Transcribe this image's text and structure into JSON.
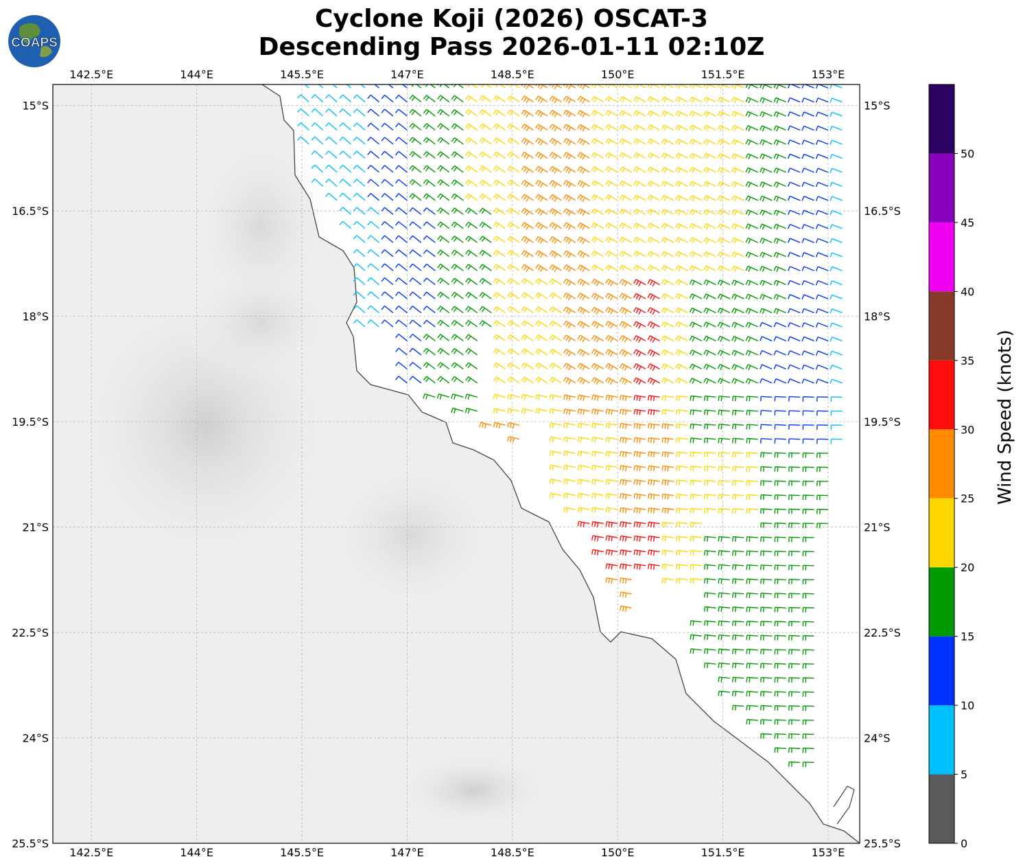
{
  "title_line1": "Cyclone Koji (2026) OSCAT-3",
  "title_line2": "Descending Pass 2026-01-11 02:10Z",
  "logo_text": "COAPS",
  "lon_ticks": [
    "142.5°E",
    "144°E",
    "145.5°E",
    "147°E",
    "148.5°E",
    "150°E",
    "151.5°E",
    "153°E"
  ],
  "lat_ticks": [
    "15°S",
    "16.5°S",
    "18°S",
    "19.5°S",
    "21°S",
    "22.5°S",
    "24°S",
    "25.5°S"
  ],
  "map_extent": {
    "lon_min": 141.95,
    "lon_max": 153.45,
    "lat_min": -25.5,
    "lat_max": -14.7
  },
  "colorbar": {
    "title": "Wind Speed (knots)",
    "tick_labels": [
      "0",
      "5",
      "10",
      "15",
      "20",
      "25",
      "30",
      "35",
      "40",
      "45",
      "50"
    ],
    "bins": [
      {
        "min": 0,
        "max": 5,
        "color": "#595959"
      },
      {
        "min": 5,
        "max": 10,
        "color": "#00bfff"
      },
      {
        "min": 10,
        "max": 15,
        "color": "#0033ff"
      },
      {
        "min": 15,
        "max": 20,
        "color": "#009900"
      },
      {
        "min": 20,
        "max": 25,
        "color": "#ffd700"
      },
      {
        "min": 25,
        "max": 30,
        "color": "#ff8c00"
      },
      {
        "min": 30,
        "max": 35,
        "color": "#ff0d0d"
      },
      {
        "min": 35,
        "max": 40,
        "color": "#843c28"
      },
      {
        "min": 40,
        "max": 45,
        "color": "#f000f0"
      },
      {
        "min": 45,
        "max": 50,
        "color": "#8800bb"
      },
      {
        "min": 50,
        "max": 55,
        "color": "#2a0060"
      }
    ]
  },
  "wind_regions": [
    {
      "lat_min": -16.4,
      "lat_max": -14.7,
      "lon_min": 145.5,
      "lon_max": 146.5,
      "speed": 7
    },
    {
      "lat_min": -16.4,
      "lat_max": -14.7,
      "lon_min": 146.5,
      "lon_max": 147.1,
      "speed": 12
    },
    {
      "lat_min": -16.4,
      "lat_max": -14.7,
      "lon_min": 147.1,
      "lon_max": 147.8,
      "speed": 17
    },
    {
      "lat_min": -17.5,
      "lat_max": -14.7,
      "lon_min": 147.8,
      "lon_max": 148.6,
      "speed": 23
    },
    {
      "lat_min": -17.5,
      "lat_max": -14.7,
      "lon_min": 148.6,
      "lon_max": 149.6,
      "speed": 27
    },
    {
      "lat_min": -17.5,
      "lat_max": -14.7,
      "lon_min": 149.6,
      "lon_max": 151.0,
      "speed": 23
    },
    {
      "lat_min": -17.5,
      "lat_max": -14.7,
      "lon_min": 151.0,
      "lon_max": 151.9,
      "speed": 22
    },
    {
      "lat_min": -18.0,
      "lat_max": -14.7,
      "lon_min": 151.9,
      "lon_max": 152.4,
      "speed": 17
    },
    {
      "lat_min": -18.0,
      "lat_max": -14.7,
      "lon_min": 152.4,
      "lon_max": 153.0,
      "speed": 12
    },
    {
      "lat_min": -18.0,
      "lat_max": -14.7,
      "lon_min": 153.0,
      "lon_max": 153.5,
      "speed": 8
    },
    {
      "lat_min": -18.3,
      "lat_max": -16.4,
      "lon_min": 146.1,
      "lon_max": 146.7,
      "speed": 8
    },
    {
      "lat_min": -18.3,
      "lat_max": -16.4,
      "lon_min": 146.7,
      "lon_max": 147.5,
      "speed": 13
    },
    {
      "lat_min": -18.3,
      "lat_max": -16.4,
      "lon_min": 147.5,
      "lon_max": 148.3,
      "speed": 18
    },
    {
      "lat_min": -19.5,
      "lat_max": -17.5,
      "lon_min": 148.3,
      "lon_max": 149.3,
      "speed": 24
    },
    {
      "lat_min": -19.5,
      "lat_max": -17.5,
      "lon_min": 149.3,
      "lon_max": 150.3,
      "speed": 27
    },
    {
      "lat_min": -19.8,
      "lat_max": -17.5,
      "lon_min": 150.3,
      "lon_max": 150.7,
      "speed": 32
    },
    {
      "lat_min": -19.8,
      "lat_max": -17.5,
      "lon_min": 150.7,
      "lon_max": 151.1,
      "speed": 23
    },
    {
      "lat_min": -19.8,
      "lat_max": -17.5,
      "lon_min": 151.1,
      "lon_max": 152.0,
      "speed": 18
    },
    {
      "lat_min": -19.8,
      "lat_max": -18.0,
      "lon_min": 152.0,
      "lon_max": 153.0,
      "speed": 12
    },
    {
      "lat_min": -19.8,
      "lat_max": -18.0,
      "lon_min": 153.0,
      "lon_max": 153.5,
      "speed": 8
    },
    {
      "lat_min": -19.4,
      "lat_max": -18.3,
      "lon_min": 146.9,
      "lon_max": 147.2,
      "speed": 12
    },
    {
      "lat_min": -19.4,
      "lat_max": -18.3,
      "lon_min": 147.2,
      "lon_max": 148.0,
      "speed": 18
    },
    {
      "lat_min": -20.1,
      "lat_max": -19.4,
      "lon_min": 148.0,
      "lon_max": 148.6,
      "speed": 27
    },
    {
      "lat_min": -20.8,
      "lat_max": -19.5,
      "lon_min": 149.0,
      "lon_max": 150.0,
      "speed": 23
    },
    {
      "lat_min": -20.8,
      "lat_max": -19.5,
      "lon_min": 150.0,
      "lon_max": 150.8,
      "speed": 29
    },
    {
      "lat_min": -20.8,
      "lat_max": -19.8,
      "lon_min": 150.8,
      "lon_max": 152.0,
      "speed": 23
    },
    {
      "lat_min": -21.0,
      "lat_max": -19.8,
      "lon_min": 152.0,
      "lon_max": 153.0,
      "speed": 18
    },
    {
      "lat_min": -21.6,
      "lat_max": -20.8,
      "lon_min": 149.4,
      "lon_max": 150.6,
      "speed": 32
    },
    {
      "lat_min": -21.9,
      "lat_max": -20.8,
      "lon_min": 150.6,
      "lon_max": 151.2,
      "speed": 23
    },
    {
      "lat_min": -22.3,
      "lat_max": -21.0,
      "lon_min": 151.2,
      "lon_max": 152.8,
      "speed": 18
    },
    {
      "lat_min": -22.2,
      "lat_max": -21.6,
      "lon_min": 149.6,
      "lon_max": 150.3,
      "speed": 28
    },
    {
      "lat_min": -24.5,
      "lat_max": -22.3,
      "lon_min": 151.0,
      "lon_max": 152.8,
      "speed": 17
    }
  ]
}
